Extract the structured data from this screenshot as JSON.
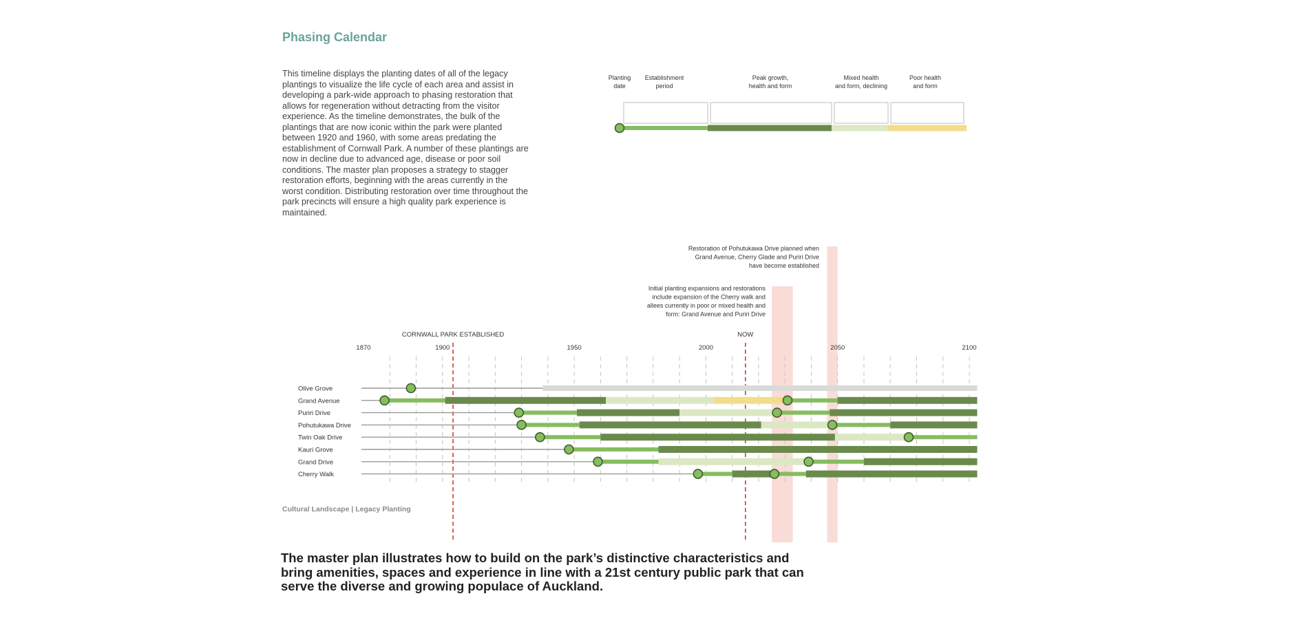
{
  "page": {
    "title": "Phasing Calendar",
    "intro": "This timeline displays the planting dates of all of the legacy plantings to visualize the life cycle of each area and assist in developing a park-wide approach to phasing restoration that allows for regeneration without detracting from the visitor experience. As the timeline demonstrates, the bulk of the plantings that are now iconic within the park were planted between 1920 and 1960, with some areas predating the establishment of Cornwall Park. A number of these plantings are now in decline due to advanced age, disease or poor soil conditions. The master plan proposes a strategy to stagger restoration efforts, beginning with the areas currently in the worst condition. Distributing restoration over time throughout the park precincts will ensure a high quality park experience is maintained.",
    "kicker": "The master plan illustrates how to build on the park’s distinctive characteristics and bring amenities, spaces and experience in line with a 21st century public park that can serve the diverse and growing populace of Auckland.",
    "caption": "Cultural Landscape | Legacy Planting"
  },
  "colors": {
    "establishment": "#86bd5f",
    "peak": "#6a8a4c",
    "mixed": "#dce8c4",
    "poor": "#f2dd8a",
    "baseline": "#999999",
    "grey": "#d8dbd8",
    "marker_fill": "#86bd5f",
    "marker_stroke": "#3f5a2c",
    "highlight": "#f9dcd8",
    "event_line": "#c8402f"
  },
  "legend": [
    {
      "label_lines": [
        "Planting",
        "date"
      ],
      "type": "marker"
    },
    {
      "label_lines": [
        "Establishment",
        "period"
      ],
      "type": "establishment"
    },
    {
      "label_lines": [
        "Peak growth,",
        "health and form"
      ],
      "type": "peak"
    },
    {
      "label_lines": [
        "Mixed health",
        "and form, declining"
      ],
      "type": "mixed"
    },
    {
      "label_lines": [
        "Poor health",
        "and form"
      ],
      "type": "poor"
    }
  ],
  "chart_data": {
    "type": "timeline",
    "x_ticks": [
      1870,
      1900,
      1950,
      2000,
      2050,
      2100
    ],
    "xlim": [
      1870,
      2103
    ],
    "events": [
      {
        "label": "CORNWALL PARK ESTABLISHED",
        "year": 1904
      },
      {
        "label": "NOW",
        "year": 2015
      }
    ],
    "annotations": [
      {
        "lines": [
          "Restoration of Pohutukawa Drive planned when",
          "Grand Avenue, Cherry Glade and Puriri Drive",
          "have become established"
        ],
        "year_start": 2046,
        "year_end": 2050
      },
      {
        "lines": [
          "Initial planting expansions and restorations",
          "include expansion of the Cherry walk and",
          "allees currently in poor or mixed health and",
          "form: Grand Avenue and Puriri Drive"
        ],
        "year_start": 2025,
        "year_end": 2033
      }
    ],
    "rows": [
      {
        "name": "Olive Grove",
        "plantings": [
          1888
        ],
        "segments": [
          {
            "from": 1938,
            "to": 2103,
            "type": "grey"
          }
        ]
      },
      {
        "name": "Grand Avenue",
        "plantings": [
          1878,
          2031
        ],
        "segments": [
          {
            "from": 1878,
            "to": 1901,
            "type": "establishment"
          },
          {
            "from": 1901,
            "to": 1962,
            "type": "peak"
          },
          {
            "from": 1962,
            "to": 2003,
            "type": "mixed"
          },
          {
            "from": 2003,
            "to": 2031,
            "type": "poor"
          },
          {
            "from": 2031,
            "to": 2050,
            "type": "establishment"
          },
          {
            "from": 2050,
            "to": 2103,
            "type": "peak"
          }
        ]
      },
      {
        "name": "Puriri Drive",
        "plantings": [
          1929,
          2027
        ],
        "segments": [
          {
            "from": 1929,
            "to": 1951,
            "type": "establishment"
          },
          {
            "from": 1951,
            "to": 1990,
            "type": "peak"
          },
          {
            "from": 1990,
            "to": 2027,
            "type": "mixed"
          },
          {
            "from": 2027,
            "to": 2047,
            "type": "establishment"
          },
          {
            "from": 2047,
            "to": 2103,
            "type": "peak"
          }
        ]
      },
      {
        "name": "Pohutukawa Drive",
        "plantings": [
          1930,
          2048
        ],
        "segments": [
          {
            "from": 1930,
            "to": 1952,
            "type": "establishment"
          },
          {
            "from": 1952,
            "to": 2021,
            "type": "peak"
          },
          {
            "from": 2021,
            "to": 2048,
            "type": "mixed"
          },
          {
            "from": 2048,
            "to": 2070,
            "type": "establishment"
          },
          {
            "from": 2070,
            "to": 2103,
            "type": "peak"
          }
        ]
      },
      {
        "name": "Twin Oak Drive",
        "plantings": [
          1937,
          2077
        ],
        "segments": [
          {
            "from": 1937,
            "to": 1960,
            "type": "establishment"
          },
          {
            "from": 1960,
            "to": 2049,
            "type": "peak"
          },
          {
            "from": 2049,
            "to": 2077,
            "type": "mixed"
          },
          {
            "from": 2077,
            "to": 2103,
            "type": "establishment"
          }
        ]
      },
      {
        "name": "Kauri Grove",
        "plantings": [
          1948
        ],
        "segments": [
          {
            "from": 1948,
            "to": 1982,
            "type": "establishment"
          },
          {
            "from": 1982,
            "to": 2103,
            "type": "peak"
          }
        ]
      },
      {
        "name": "Grand Drive",
        "plantings": [
          1959,
          2039
        ],
        "segments": [
          {
            "from": 1959,
            "to": 1982,
            "type": "establishment"
          },
          {
            "from": 1982,
            "to": 2039,
            "type": "mixed"
          },
          {
            "from": 2039,
            "to": 2060,
            "type": "establishment"
          },
          {
            "from": 2060,
            "to": 2103,
            "type": "peak"
          }
        ]
      },
      {
        "name": "Cherry Walk",
        "plantings": [
          1997,
          2026
        ],
        "segments": [
          {
            "from": 1997,
            "to": 2010,
            "type": "establishment"
          },
          {
            "from": 2010,
            "to": 2026,
            "type": "peak"
          },
          {
            "from": 2026,
            "to": 2038,
            "type": "establishment"
          },
          {
            "from": 2038,
            "to": 2103,
            "type": "peak"
          }
        ]
      }
    ]
  }
}
